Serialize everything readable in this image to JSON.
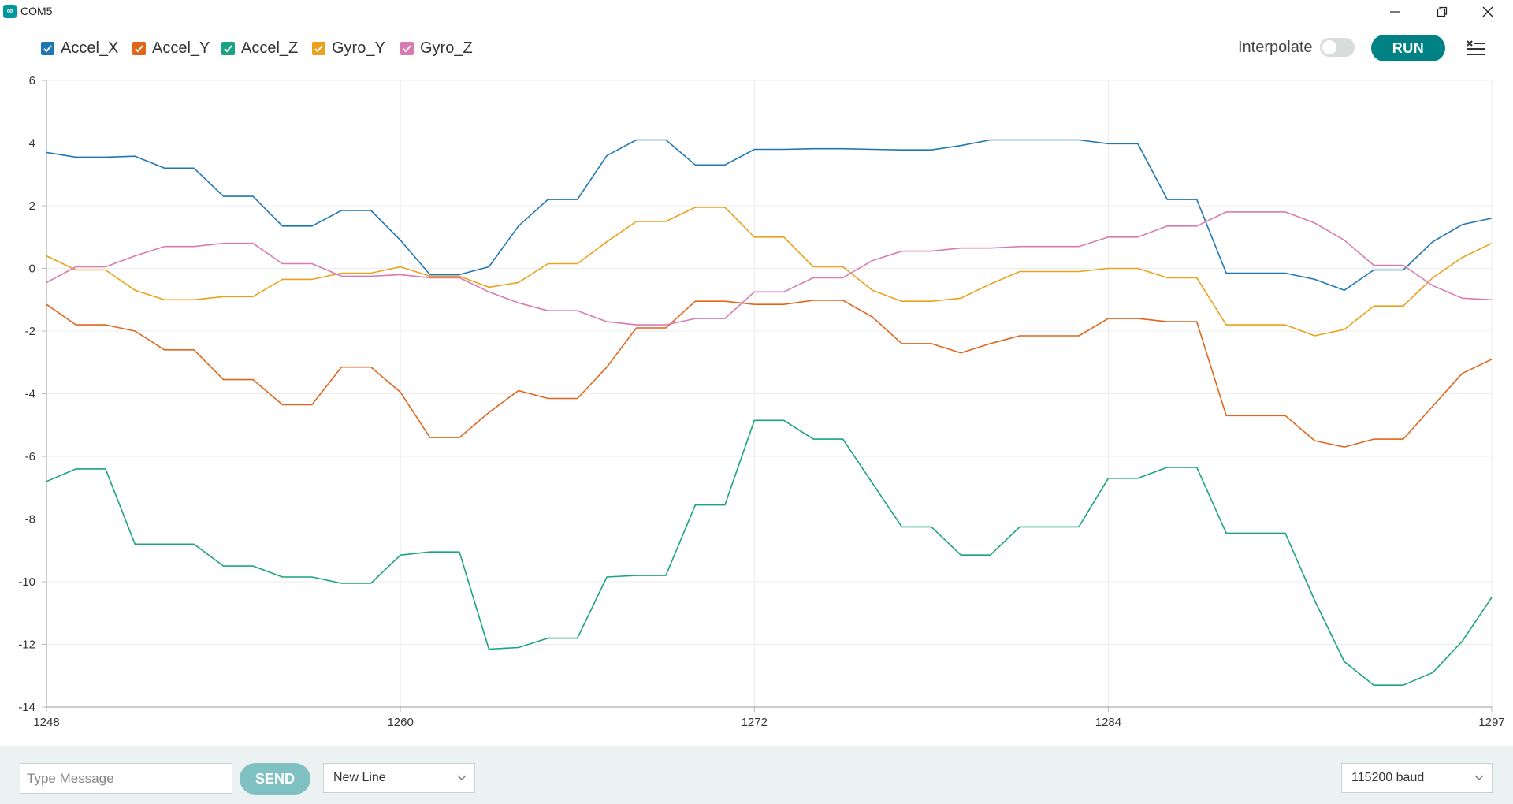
{
  "window": {
    "title": "COM5",
    "icon": "arduino-infinity-icon",
    "controls": [
      "minimize-icon",
      "restore-icon",
      "close-icon"
    ]
  },
  "legend": [
    {
      "label": "Accel_X",
      "color": "#1f77b4",
      "checked": true
    },
    {
      "label": "Accel_Y",
      "color": "#e0661b",
      "checked": true
    },
    {
      "label": "Accel_Z",
      "color": "#1aa382",
      "checked": true
    },
    {
      "label": "Gyro_Y",
      "color": "#eaa21b",
      "checked": true
    },
    {
      "label": "Gyro_Z",
      "color": "#d97bb0",
      "checked": true
    }
  ],
  "controls": {
    "interpolate_label": "Interpolate",
    "interpolate_on": false,
    "run_label": "RUN",
    "menu_icon": "clear-output-icon"
  },
  "bottom": {
    "message_placeholder": "Type Message",
    "send_label": "SEND",
    "line_ending": "New Line",
    "baud": "115200 baud"
  },
  "chart_data": {
    "type": "line",
    "x": [
      1248,
      1249,
      1250,
      1251,
      1252,
      1253,
      1254,
      1255,
      1256,
      1257,
      1258,
      1259,
      1260,
      1261,
      1262,
      1263,
      1264,
      1265,
      1266,
      1267,
      1268,
      1269,
      1270,
      1271,
      1272,
      1273,
      1274,
      1275,
      1276,
      1277,
      1278,
      1279,
      1280,
      1281,
      1282,
      1283,
      1284,
      1285,
      1286,
      1287,
      1288,
      1289,
      1290,
      1291,
      1292,
      1293,
      1294,
      1295,
      1296,
      1297
    ],
    "xlim": [
      1248,
      1297
    ],
    "ylim": [
      -14,
      6
    ],
    "xticks": [
      1248,
      1260,
      1272,
      1284,
      1297
    ],
    "yticks": [
      6,
      4,
      2,
      0,
      -2,
      -4,
      -6,
      -8,
      -10,
      -12,
      -14
    ],
    "grid": true,
    "series": [
      {
        "name": "Accel_X",
        "values": [
          3.7,
          3.55,
          3.55,
          3.58,
          3.2,
          3.2,
          2.3,
          2.3,
          1.35,
          1.35,
          1.85,
          1.85,
          0.9,
          -0.2,
          -0.2,
          0.05,
          1.35,
          2.2,
          2.2,
          3.6,
          4.1,
          4.1,
          3.3,
          3.3,
          3.8,
          3.8,
          3.82,
          3.82,
          3.8,
          3.78,
          3.78,
          3.92,
          4.1,
          4.1,
          4.1,
          4.1,
          3.98,
          3.98,
          2.2,
          2.2,
          -0.15,
          -0.15,
          -0.15,
          -0.35,
          -0.7,
          -0.05,
          -0.05,
          0.85,
          1.4,
          1.6
        ]
      },
      {
        "name": "Accel_Y",
        "values": [
          -1.15,
          -1.8,
          -1.8,
          -2.0,
          -2.6,
          -2.6,
          -3.55,
          -3.55,
          -4.35,
          -4.35,
          -3.15,
          -3.15,
          -3.95,
          -5.4,
          -5.4,
          -4.6,
          -3.9,
          -4.15,
          -4.15,
          -3.15,
          -1.9,
          -1.9,
          -1.05,
          -1.05,
          -1.15,
          -1.15,
          -1.02,
          -1.02,
          -1.55,
          -2.4,
          -2.4,
          -2.7,
          -2.4,
          -2.15,
          -2.15,
          -2.15,
          -1.6,
          -1.6,
          -1.7,
          -1.7,
          -4.7,
          -4.7,
          -4.7,
          -5.5,
          -5.7,
          -5.45,
          -5.45,
          -4.4,
          -3.35,
          -2.9
        ]
      },
      {
        "name": "Accel_Z",
        "values": [
          -6.8,
          -6.4,
          -6.4,
          -8.8,
          -8.8,
          -8.8,
          -9.5,
          -9.5,
          -9.85,
          -9.85,
          -10.05,
          -10.05,
          -9.15,
          -9.05,
          -9.05,
          -12.15,
          -12.1,
          -11.8,
          -11.8,
          -9.85,
          -9.8,
          -9.8,
          -7.55,
          -7.55,
          -4.85,
          -4.85,
          -5.45,
          -5.45,
          -6.85,
          -8.25,
          -8.25,
          -9.15,
          -9.15,
          -8.25,
          -8.25,
          -8.25,
          -6.7,
          -6.7,
          -6.35,
          -6.35,
          -8.45,
          -8.45,
          -8.45,
          -10.6,
          -12.55,
          -13.3,
          -13.3,
          -12.9,
          -11.9,
          -10.5
        ]
      },
      {
        "name": "Gyro_Y",
        "values": [
          0.4,
          -0.05,
          -0.05,
          -0.7,
          -1.0,
          -1.0,
          -0.9,
          -0.9,
          -0.35,
          -0.35,
          -0.15,
          -0.15,
          0.05,
          -0.25,
          -0.25,
          -0.6,
          -0.45,
          0.15,
          0.15,
          0.85,
          1.5,
          1.5,
          1.95,
          1.95,
          1.0,
          1.0,
          0.05,
          0.05,
          -0.7,
          -1.05,
          -1.05,
          -0.95,
          -0.5,
          -0.1,
          -0.1,
          -0.1,
          0.0,
          0.0,
          -0.3,
          -0.3,
          -1.8,
          -1.8,
          -1.8,
          -2.15,
          -1.95,
          -1.2,
          -1.2,
          -0.3,
          0.35,
          0.8
        ]
      },
      {
        "name": "Gyro_Z",
        "values": [
          -0.45,
          0.05,
          0.05,
          0.4,
          0.7,
          0.7,
          0.8,
          0.8,
          0.15,
          0.15,
          -0.25,
          -0.25,
          -0.2,
          -0.3,
          -0.3,
          -0.75,
          -1.1,
          -1.35,
          -1.35,
          -1.7,
          -1.8,
          -1.8,
          -1.6,
          -1.6,
          -0.75,
          -0.75,
          -0.3,
          -0.3,
          0.25,
          0.55,
          0.55,
          0.65,
          0.65,
          0.7,
          0.7,
          0.7,
          1.0,
          1.0,
          1.35,
          1.35,
          1.8,
          1.8,
          1.8,
          1.45,
          0.9,
          0.1,
          0.1,
          -0.55,
          -0.95,
          -1.0
        ]
      }
    ]
  }
}
